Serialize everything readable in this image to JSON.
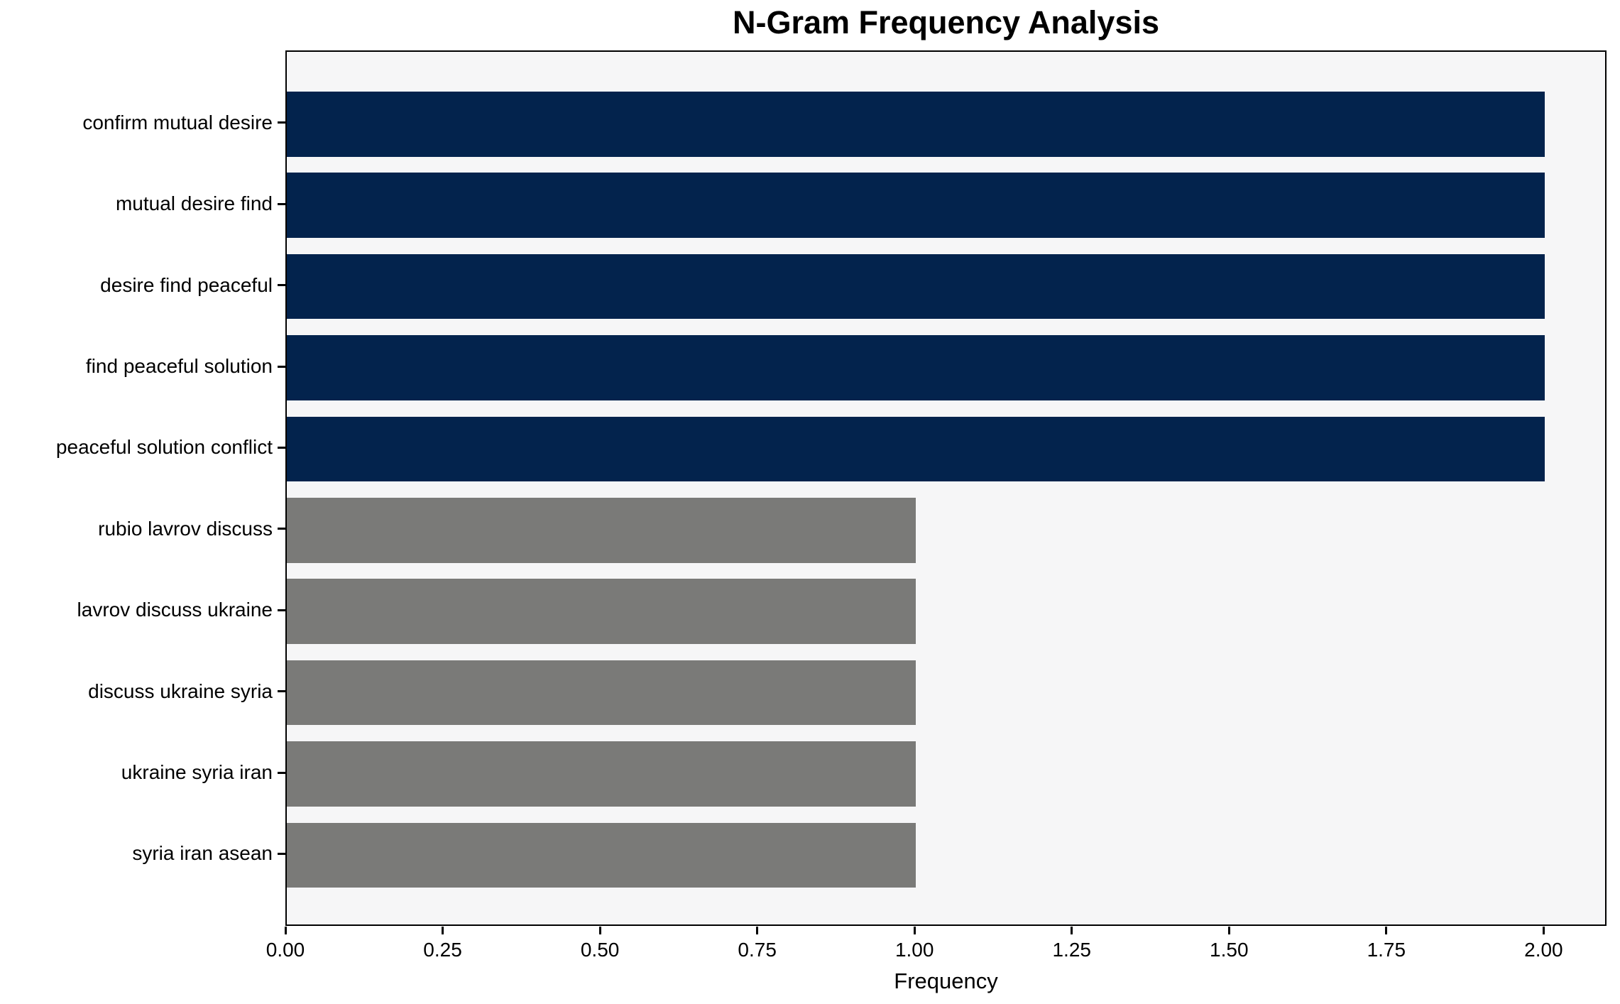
{
  "chart_data": {
    "type": "bar",
    "orientation": "horizontal",
    "title": "N-Gram Frequency Analysis",
    "xlabel": "Frequency",
    "ylabel": "",
    "categories": [
      "confirm mutual desire",
      "mutual desire find",
      "desire find peaceful",
      "find peaceful solution",
      "peaceful solution conflict",
      "rubio lavrov discuss",
      "lavrov discuss ukraine",
      "discuss ukraine syria",
      "ukraine syria iran",
      "syria iran asean"
    ],
    "values": [
      2,
      2,
      2,
      2,
      2,
      1,
      1,
      1,
      1,
      1
    ],
    "bar_colors": [
      "#03234d",
      "#03234d",
      "#03234d",
      "#03234d",
      "#03234d",
      "#7a7a78",
      "#7a7a78",
      "#7a7a78",
      "#7a7a78",
      "#7a7a78"
    ],
    "xlim": [
      0,
      2.1
    ],
    "xticks": [
      0.0,
      0.25,
      0.5,
      0.75,
      1.0,
      1.25,
      1.5,
      1.75,
      2.0
    ],
    "xtick_labels": [
      "0.00",
      "0.25",
      "0.50",
      "0.75",
      "1.00",
      "1.25",
      "1.50",
      "1.75",
      "2.00"
    ],
    "grid": false,
    "legend": false,
    "colors": {
      "highlight_bar": "#03234d",
      "default_bar": "#7a7a78",
      "plot_background": "#f6f6f7",
      "figure_background": "#ffffff",
      "spine": "#000000",
      "text": "#000000"
    }
  }
}
